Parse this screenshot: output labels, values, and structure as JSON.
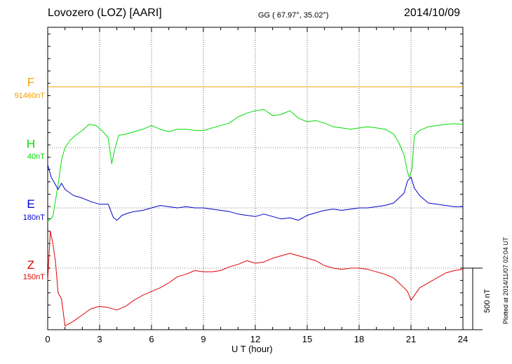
{
  "header": {
    "title": "Lovozero (LOZ)  [AARI]",
    "coords": "GG ( 67.97°,  35.02°)",
    "date": "2014/10/09"
  },
  "footnote": "Plotted at 2014/11/07 02:04 UT",
  "scale_label": "500 nT",
  "colors": {
    "F": "#f0a000",
    "H": "#00dd00",
    "E": "#0000cc",
    "Z": "#e00000"
  },
  "chart_data": {
    "type": "line",
    "title": "Lovozero (LOZ)  [AARI]",
    "xlabel": "U T (hour)",
    "xlim": [
      0,
      24
    ],
    "xticks": [
      "0",
      "3",
      "6",
      "9",
      "12",
      "15",
      "18",
      "21",
      "24"
    ],
    "grid": true,
    "scale_bar_nT": 500,
    "series": [
      {
        "name": "F",
        "baseline_label": "91460nT",
        "color": "#f0a000",
        "x": [
          0,
          24
        ],
        "y_nT": [
          0,
          0
        ]
      },
      {
        "name": "H",
        "baseline_label": "40nT",
        "color": "#00dd00",
        "x": [
          0,
          0.3,
          0.6,
          0.8,
          1.0,
          1.3,
          1.6,
          2.0,
          2.4,
          2.8,
          3.2,
          3.5,
          3.7,
          3.85,
          4.1,
          4.5,
          5.0,
          5.5,
          6.0,
          6.5,
          7.0,
          7.5,
          8.0,
          8.5,
          9.0,
          9.5,
          10.0,
          10.5,
          11.0,
          11.5,
          12.0,
          12.5,
          13.0,
          13.5,
          14.0,
          14.5,
          15.0,
          15.5,
          16.0,
          16.5,
          17.0,
          17.5,
          18.0,
          18.5,
          19.0,
          19.5,
          20.0,
          20.3,
          20.6,
          20.8,
          20.9,
          21.05,
          21.2,
          21.5,
          22.0,
          22.5,
          23.0,
          23.5,
          24.0
        ],
        "y_nT": [
          -600,
          -560,
          -300,
          -100,
          0,
          60,
          100,
          140,
          190,
          180,
          130,
          80,
          -130,
          -30,
          100,
          110,
          130,
          150,
          180,
          150,
          130,
          150,
          150,
          140,
          140,
          160,
          180,
          200,
          250,
          280,
          300,
          310,
          260,
          270,
          300,
          240,
          210,
          220,
          200,
          170,
          160,
          150,
          160,
          170,
          160,
          150,
          110,
          40,
          -60,
          -200,
          -240,
          -180,
          100,
          140,
          170,
          180,
          190,
          195,
          190
        ]
      },
      {
        "name": "E",
        "baseline_label": "180nT",
        "color": "#0000cc",
        "x": [
          0,
          0.2,
          0.4,
          0.6,
          0.8,
          1.0,
          1.5,
          2.0,
          2.5,
          3.0,
          3.5,
          3.8,
          4.0,
          4.3,
          4.7,
          5.0,
          5.5,
          6.0,
          6.5,
          7.0,
          7.5,
          8.0,
          8.5,
          9.0,
          9.5,
          10.0,
          10.5,
          11.0,
          11.5,
          12.0,
          12.5,
          13.0,
          13.5,
          14.0,
          14.5,
          15.0,
          15.5,
          16.0,
          16.5,
          17.0,
          17.5,
          18.0,
          18.5,
          19.0,
          19.5,
          20.0,
          20.3,
          20.6,
          20.8,
          21.0,
          21.2,
          21.5,
          22.0,
          22.5,
          23.0,
          23.5,
          24.0
        ],
        "y_nT": [
          350,
          250,
          200,
          150,
          200,
          150,
          100,
          80,
          50,
          30,
          30,
          -80,
          -100,
          -60,
          -40,
          -30,
          -20,
          0,
          20,
          10,
          0,
          10,
          0,
          0,
          -10,
          -20,
          -30,
          -50,
          -60,
          -70,
          -50,
          -70,
          -90,
          -80,
          -100,
          -60,
          -40,
          -20,
          -10,
          -20,
          -10,
          0,
          0,
          10,
          20,
          40,
          80,
          120,
          220,
          250,
          160,
          100,
          40,
          30,
          20,
          10,
          10
        ]
      },
      {
        "name": "Z",
        "baseline_label": "150nT",
        "color": "#e00000",
        "x": [
          0,
          0.15,
          0.3,
          0.45,
          0.6,
          0.8,
          1.0,
          1.5,
          2.0,
          2.5,
          3.0,
          3.5,
          4.0,
          4.5,
          5.0,
          5.5,
          6.0,
          6.5,
          7.0,
          7.5,
          8.0,
          8.5,
          9.0,
          9.5,
          10.0,
          10.5,
          11.0,
          11.5,
          12.0,
          12.5,
          13.0,
          13.5,
          14.0,
          14.5,
          15.0,
          15.5,
          16.0,
          16.5,
          17.0,
          17.5,
          18.0,
          18.5,
          19.0,
          19.5,
          20.0,
          20.3,
          20.6,
          20.8,
          21.0,
          21.2,
          21.5,
          22.0,
          22.5,
          23.0,
          23.5,
          24.0
        ],
        "y_nT": [
          -100,
          300,
          200,
          50,
          -200,
          -250,
          -470,
          -430,
          -380,
          -330,
          -310,
          -320,
          -340,
          -310,
          -260,
          -220,
          -190,
          -160,
          -120,
          -70,
          -50,
          -20,
          -30,
          -30,
          -20,
          10,
          30,
          60,
          40,
          50,
          80,
          100,
          120,
          100,
          80,
          60,
          20,
          0,
          -10,
          0,
          0,
          -10,
          -30,
          -50,
          -80,
          -120,
          -160,
          -190,
          -260,
          -220,
          -160,
          -120,
          -80,
          -40,
          -20,
          -10
        ]
      }
    ]
  }
}
